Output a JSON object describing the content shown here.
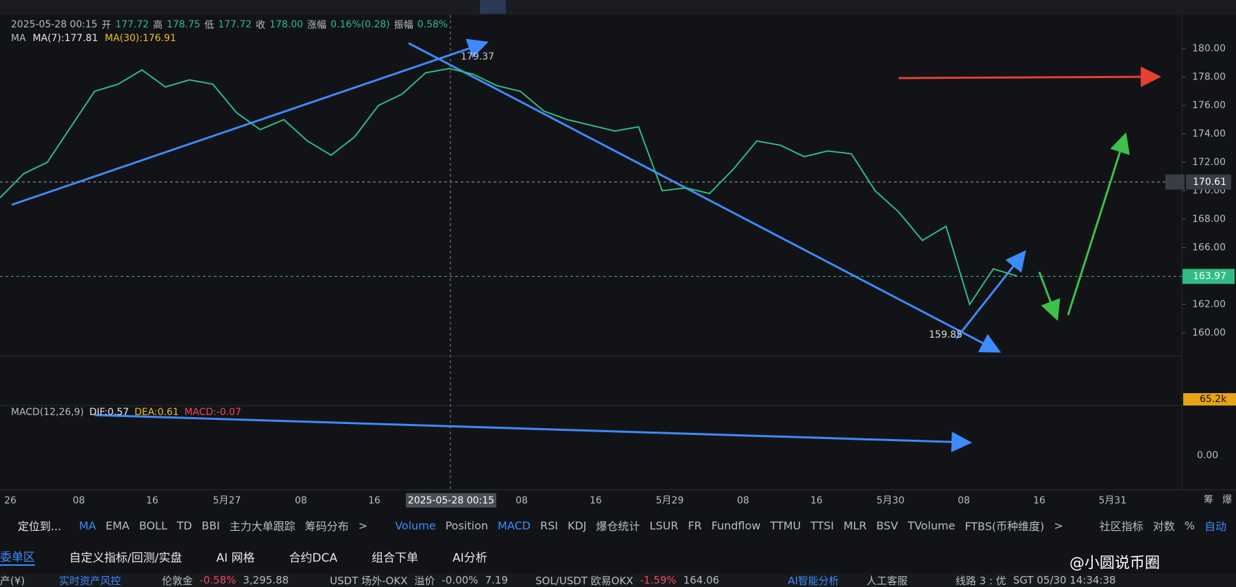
{
  "info": {
    "datetime": "2025-05-28 00:15",
    "open_label": "开",
    "open": "177.72",
    "high_label": "高",
    "high": "178.75",
    "low_label": "低",
    "low": "177.72",
    "close_label": "收",
    "close": "178.00",
    "change_label": "涨幅",
    "change": "0.16%(0.28)",
    "amp_label": "振幅",
    "amp": "0.58%"
  },
  "ma": {
    "name": "MA",
    "ma7": "MA(7):177.81",
    "ma30": "MA(30):176.91"
  },
  "chart_data": {
    "type": "line",
    "color": "#2ebd85",
    "values": [
      169.5,
      171.2,
      172,
      174.5,
      177,
      177.5,
      178.5,
      177.3,
      177.8,
      177.5,
      175.5,
      174.3,
      175,
      173.5,
      172.5,
      173.8,
      176,
      176.8,
      178.3,
      178.6,
      178.2,
      177.4,
      177,
      175.6,
      175,
      174.6,
      174.2,
      174.5,
      170,
      170.2,
      169.8,
      171.5,
      173.5,
      173.2,
      172.4,
      172.8,
      172.6,
      170,
      168.5,
      166.5,
      167.5,
      162,
      164.5,
      164
    ],
    "ylim": [
      158.5,
      182.3
    ],
    "yticks": [
      {
        "value": 160,
        "label": "160.00"
      },
      {
        "value": 162,
        "label": "162.00"
      },
      {
        "value": 164,
        "label": "164.00"
      },
      {
        "value": 166,
        "label": "166.00"
      },
      {
        "value": 168,
        "label": "168.00"
      },
      {
        "value": 170,
        "label": "170.00"
      },
      {
        "value": 172,
        "label": "172.00"
      },
      {
        "value": 174,
        "label": "174.00"
      },
      {
        "value": 176,
        "label": "176.00"
      },
      {
        "value": 178,
        "label": "178.00"
      },
      {
        "value": 180,
        "label": "180.00"
      }
    ],
    "high_label": "179.37",
    "low_label": "159.85",
    "marker_price": {
      "value": 170.61,
      "label": "170.61"
    },
    "last_price": {
      "value": 163.97,
      "label": "163.97"
    },
    "volume_label": "65.2k",
    "macd_zero": "0.00",
    "xticks": [
      "26",
      "08",
      "16",
      "5月27",
      "08",
      "16",
      "2025-05-28 00:15",
      "08",
      "16",
      "5月29",
      "08",
      "16",
      "5月30",
      "08",
      "16",
      "5月31"
    ],
    "corner": [
      "筹",
      "爆"
    ]
  },
  "macd": {
    "name": "MACD(12,26,9)",
    "dif": "DIF:0.57",
    "dea": "DEA:0.61",
    "macd": "MACD:-0.07"
  },
  "indicators": {
    "locate": "定位到...",
    "main": [
      "MA",
      "EMA",
      "BOLL",
      "TD",
      "BBI",
      "主力大单跟踪",
      "筹码分布",
      ">"
    ],
    "sub": [
      "Volume",
      "Position",
      "MACD",
      "RSI",
      "KDJ",
      "爆仓统计",
      "LSUR",
      "FR",
      "Fundflow",
      "TTMU",
      "TTSI",
      "MLR",
      "BSV",
      "TVolume",
      "FTBS(币种维度)",
      ">"
    ],
    "right": [
      "社区指标",
      "对数",
      "%",
      "自动"
    ]
  },
  "tabs": [
    "委单区",
    "自定义指标/回测/实盘",
    "AI 网格",
    "合约DCA",
    "组合下单",
    "AI分析"
  ],
  "status": {
    "asset": "产(¥)",
    "risk": "实时资产风控",
    "gold": "伦敦金",
    "gold_chg": "-0.58%",
    "gold_px": "3,295.88",
    "otc": "USDT 场外-OKX",
    "premium": "溢价",
    "premium_val": "-0.00%",
    "otc_px": "7.19",
    "sol": "SOL/USDT 欧易OKX",
    "sol_chg": "-1.59%",
    "sol_px": "164.06",
    "ai": "AI智能分析",
    "service": "人工客服",
    "line": "线路 3 : 优",
    "time": "SGT 05/30 14:34:38"
  },
  "watermark": "@小圆说币圈"
}
